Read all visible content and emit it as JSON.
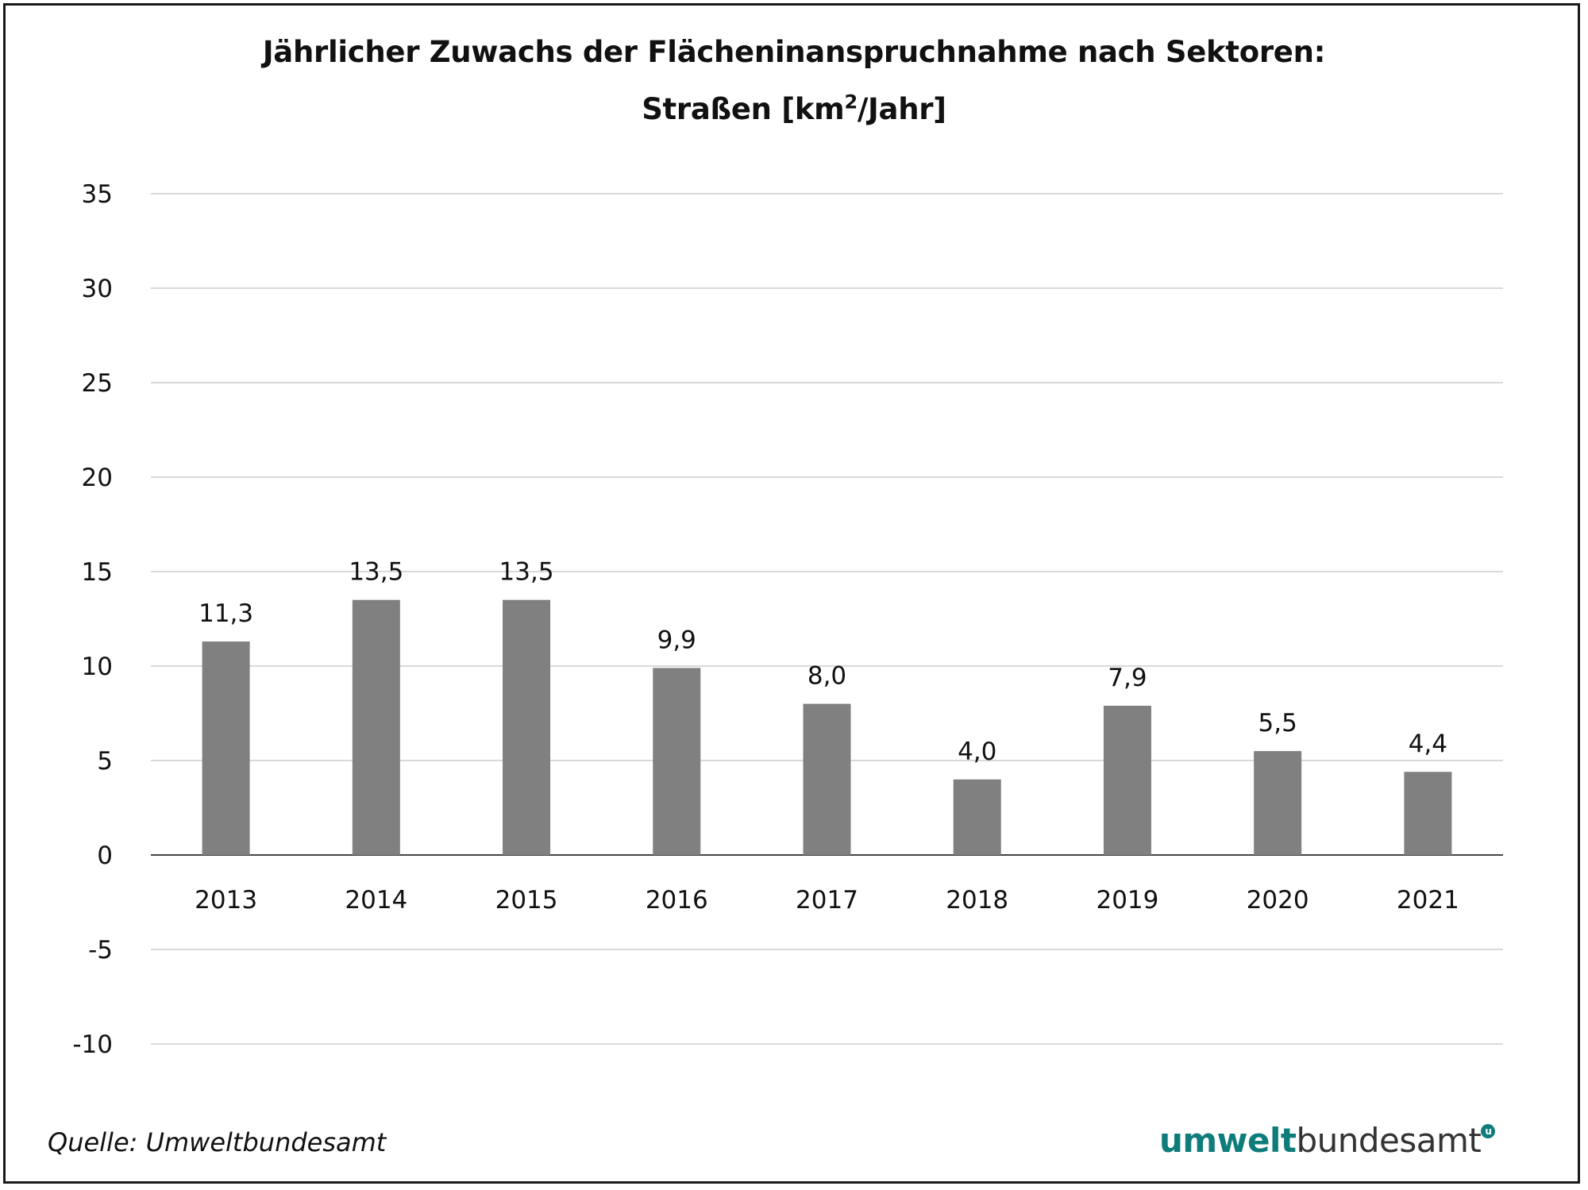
{
  "chart_data": {
    "type": "bar",
    "title_line1": "Jährlicher Zuwachs der Flächeninanspruchnahme nach Sektoren:",
    "title_line2_pre": "Straßen [km",
    "title_line2_sup": "2",
    "title_line2_post": "/Jahr]",
    "categories": [
      "2013",
      "2014",
      "2015",
      "2016",
      "2017",
      "2018",
      "2019",
      "2020",
      "2021"
    ],
    "values": [
      11.3,
      13.5,
      13.5,
      9.9,
      8.0,
      4.0,
      7.9,
      5.5,
      4.4
    ],
    "data_labels": [
      "11,3",
      "13,5",
      "13,5",
      "9,9",
      "8,0",
      "4,0",
      "7,9",
      "5,5",
      "4,4"
    ],
    "yticks": [
      35,
      30,
      25,
      20,
      15,
      10,
      5,
      0,
      -5,
      -10
    ],
    "ylim": [
      -10,
      35
    ],
    "xlabel": "",
    "ylabel": "",
    "grid": true,
    "bar_color": "#808080"
  },
  "source": "Quelle: Umweltbundesamt",
  "logo": {
    "part1": "umwelt",
    "part2": "bundesamt",
    "mark": "u",
    "color": "#0e7c7b"
  }
}
